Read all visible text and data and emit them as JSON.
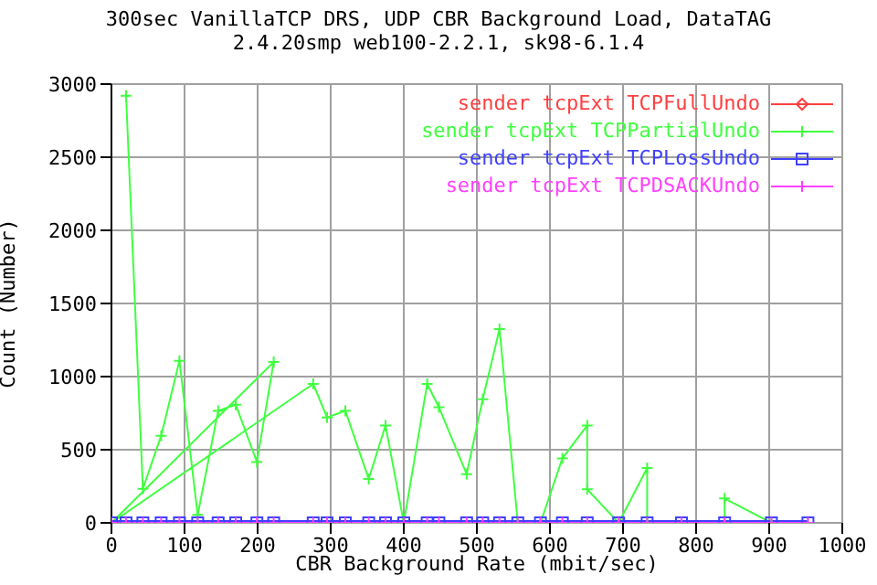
{
  "chart_data": {
    "type": "line",
    "title": "300sec VanillaTCP DRS, UDP CBR Background Load, DataTAG",
    "subtitle": "2.4.20smp web100-2.2.1, sk98-6.1.4",
    "xlabel": "CBR Background Rate (mbit/sec)",
    "ylabel": "Count (Number)",
    "x": [
      0,
      20,
      43,
      68,
      93,
      118,
      146,
      170,
      199,
      222,
      276,
      295,
      320,
      352,
      375,
      400,
      432,
      448,
      486,
      508,
      531,
      556,
      587,
      617,
      651,
      694,
      733,
      780,
      839,
      903,
      953
    ],
    "series": [
      {
        "name": "sender tcpExt TCPFullUndo",
        "color": "#ff4040",
        "marker": "diamond",
        "values": [
          null,
          null,
          null,
          null,
          null,
          null,
          null,
          null,
          null,
          null,
          null,
          null,
          null,
          null,
          null,
          null,
          null,
          null,
          null,
          null,
          null,
          null,
          null,
          null,
          null,
          null,
          null,
          null,
          null,
          null,
          null
        ]
      },
      {
        "name": "sender tcpExt TCPPartialUndo",
        "color": "#40ff40",
        "marker": "cross",
        "x": [
          20,
          43,
          68,
          93,
          118,
          146,
          170,
          199,
          222,
          0,
          276,
          295,
          320,
          352,
          375,
          400,
          432,
          448,
          486,
          508,
          531,
          556,
          587,
          617,
          651,
          651,
          694,
          733,
          733,
          780,
          839,
          839,
          903,
          953
        ],
        "values": [
          2920,
          233,
          596,
          1108,
          54,
          766,
          808,
          416,
          1100,
          0,
          950,
          721,
          766,
          300,
          666,
          0,
          950,
          791,
          333,
          846,
          1325,
          0,
          0,
          441,
          666,
          229,
          0,
          375,
          0,
          0,
          0,
          167,
          0,
          0
        ]
      },
      {
        "name": "sender tcpExt TCPLossUndo",
        "color": "#4040ff",
        "marker": "square",
        "values": [
          0,
          0,
          0,
          0,
          0,
          0,
          0,
          0,
          0,
          0,
          0,
          0,
          0,
          0,
          0,
          0,
          0,
          0,
          0,
          0,
          0,
          0,
          0,
          0,
          0,
          0,
          0,
          0,
          0,
          0,
          0
        ]
      },
      {
        "name": "sender tcpExt TCPDSACKUndo",
        "color": "#ff40ff",
        "marker": "cross",
        "values": [
          0,
          0,
          0,
          0,
          0,
          0,
          0,
          0,
          0,
          0,
          0,
          0,
          0,
          0,
          0,
          0,
          0,
          0,
          0,
          0,
          0,
          0,
          0,
          0,
          0,
          0,
          0,
          0,
          0,
          0,
          0
        ]
      }
    ],
    "xlim": [
      0,
      1000
    ],
    "xticks": [
      0,
      100,
      200,
      300,
      400,
      500,
      600,
      700,
      800,
      900,
      1000
    ],
    "ylim": [
      0,
      3000
    ],
    "yticks": [
      0,
      500,
      1000,
      1500,
      2000,
      2500,
      3000
    ],
    "grid": true,
    "legend": "top right"
  }
}
